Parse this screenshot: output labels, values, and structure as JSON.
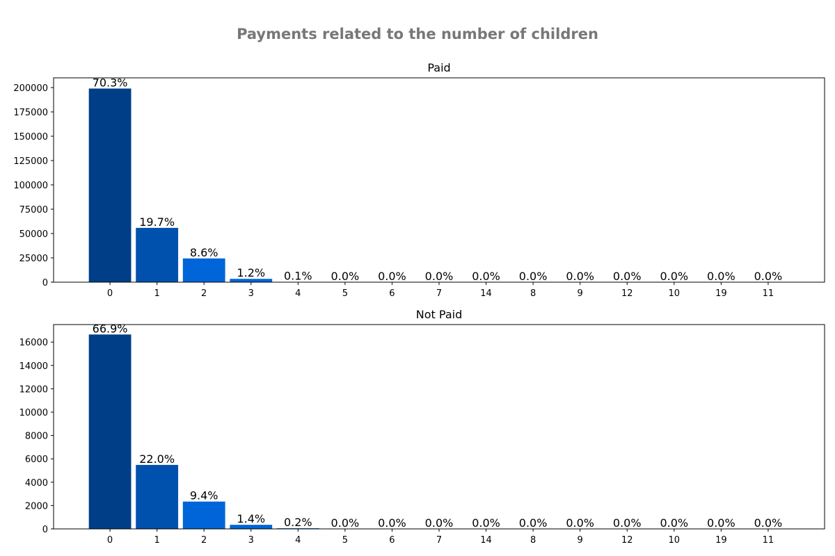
{
  "figure": {
    "title": "Payments related to the number of children"
  },
  "chart_data": [
    {
      "type": "bar",
      "title": "Paid",
      "xlabel": "",
      "ylabel": "",
      "categories": [
        "0",
        "1",
        "2",
        "3",
        "4",
        "5",
        "6",
        "7",
        "14",
        "8",
        "9",
        "12",
        "10",
        "19",
        "11"
      ],
      "values": [
        199000,
        55800,
        24400,
        3400,
        300,
        0,
        0,
        0,
        0,
        0,
        0,
        0,
        0,
        0,
        0
      ],
      "labels": [
        "70.3%",
        "19.7%",
        "8.6%",
        "1.2%",
        "0.1%",
        "0.0%",
        "0.0%",
        "0.0%",
        "0.0%",
        "0.0%",
        "0.0%",
        "0.0%",
        "0.0%",
        "0.0%",
        "0.0%"
      ],
      "ylim": [
        0,
        210000
      ],
      "yticks": [
        0,
        25000,
        50000,
        75000,
        100000,
        125000,
        150000,
        175000,
        200000
      ],
      "grid": false,
      "colors": [
        "#003f88",
        "#0051ad",
        "#0065d8",
        "#0065d8",
        "#0065d8",
        "#0065d8",
        "#0065d8",
        "#0065d8",
        "#0065d8",
        "#0065d8",
        "#0065d8",
        "#0065d8",
        "#0065d8",
        "#0065d8",
        "#0065d8"
      ]
    },
    {
      "type": "bar",
      "title": "Not Paid",
      "xlabel": "",
      "ylabel": "",
      "categories": [
        "0",
        "1",
        "2",
        "3",
        "4",
        "5",
        "6",
        "7",
        "14",
        "8",
        "9",
        "12",
        "10",
        "19",
        "11"
      ],
      "values": [
        16650,
        5480,
        2340,
        350,
        55,
        0,
        0,
        0,
        0,
        0,
        0,
        0,
        0,
        0,
        0
      ],
      "labels": [
        "66.9%",
        "22.0%",
        "9.4%",
        "1.4%",
        "0.2%",
        "0.0%",
        "0.0%",
        "0.0%",
        "0.0%",
        "0.0%",
        "0.0%",
        "0.0%",
        "0.0%",
        "0.0%",
        "0.0%"
      ],
      "ylim": [
        0,
        17500
      ],
      "yticks": [
        0,
        2000,
        4000,
        6000,
        8000,
        10000,
        12000,
        14000,
        16000
      ],
      "grid": false,
      "colors": [
        "#003f88",
        "#0051ad",
        "#0065d8",
        "#0065d8",
        "#0065d8",
        "#0065d8",
        "#0065d8",
        "#0065d8",
        "#0065d8",
        "#0065d8",
        "#0065d8",
        "#0065d8",
        "#0065d8",
        "#0065d8",
        "#0065d8"
      ]
    }
  ]
}
